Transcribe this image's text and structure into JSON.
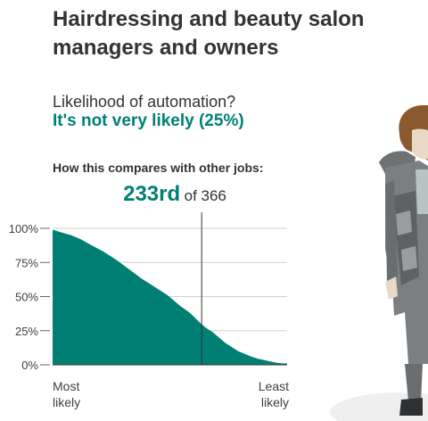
{
  "header": {
    "title": "Hairdressing and beauty salon managers and owners"
  },
  "result": {
    "question": "Likelihood of automation?",
    "verdict": "It's not very likely (25%)",
    "compare_label": "How this compares with other jobs:",
    "rank_value": "233rd",
    "rank_of": "of 366"
  },
  "colors": {
    "accent": "#008075",
    "grid": "#d0d0d0",
    "marker": "#333333"
  },
  "illustration": "person-illustration",
  "chart_data": {
    "type": "area",
    "title": "",
    "xlabel_left": "Most likely",
    "xlabel_right": "Least likely",
    "xlabel_left_lines": [
      "Most",
      "likely"
    ],
    "xlabel_right_lines": [
      "Least",
      "likely"
    ],
    "ylabel": "",
    "yticks": [
      "100%",
      "75%",
      "50%",
      "25%",
      "0%"
    ],
    "ytick_values": [
      100,
      75,
      50,
      25,
      0
    ],
    "ylim": [
      0,
      100
    ],
    "x_range": [
      1,
      366
    ],
    "grid": true,
    "highlight_rank": 233,
    "highlight_value": 25,
    "series": [
      {
        "x": [
          1,
          15,
          30,
          45,
          60,
          80,
          100,
          120,
          140,
          160,
          180,
          200,
          215,
          230,
          240,
          250,
          260,
          270,
          280,
          290,
          300,
          310,
          320,
          330,
          340,
          350,
          360,
          366
        ],
        "values": [
          99,
          97,
          95,
          92,
          88,
          83,
          77,
          70,
          63,
          57,
          51,
          43,
          38,
          31,
          27,
          24,
          20,
          16,
          13,
          10,
          8,
          6,
          4.5,
          3.5,
          2.5,
          1.5,
          1,
          1
        ]
      }
    ]
  }
}
